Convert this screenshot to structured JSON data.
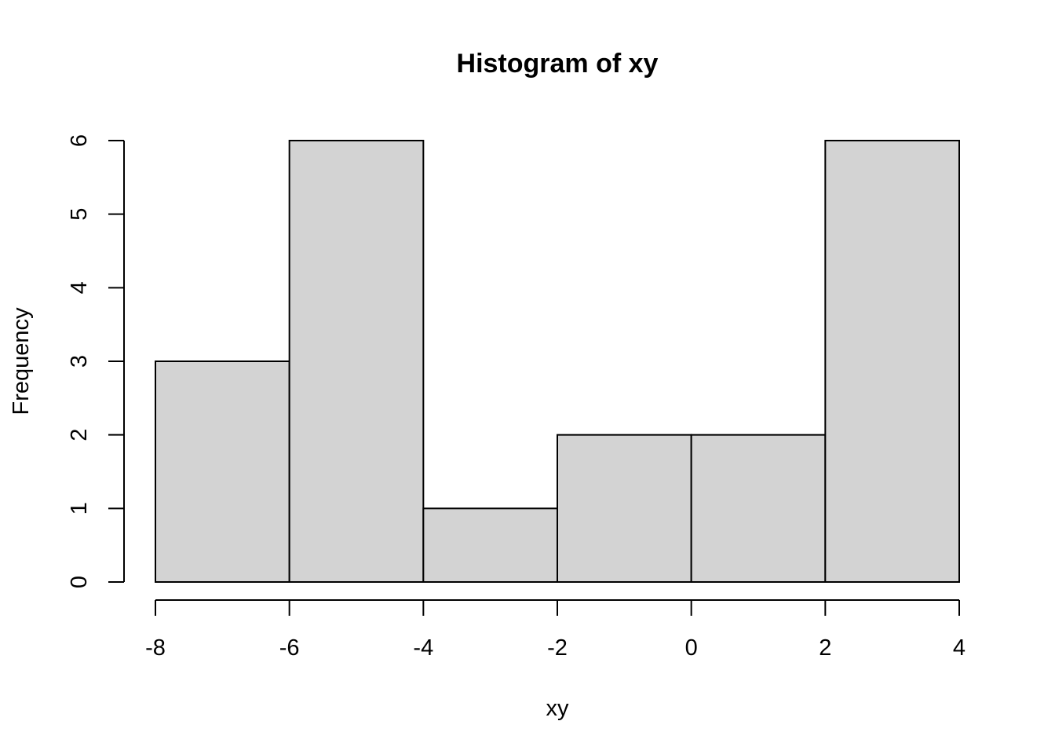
{
  "chart_data": {
    "type": "bar",
    "title": "Histogram of xy",
    "xlabel": "xy",
    "ylabel": "Frequency",
    "bins": [
      {
        "start": -8,
        "end": -6,
        "count": 3
      },
      {
        "start": -6,
        "end": -4,
        "count": 6
      },
      {
        "start": -4,
        "end": -2,
        "count": 1
      },
      {
        "start": -2,
        "end": 0,
        "count": 2
      },
      {
        "start": 0,
        "end": 2,
        "count": 2
      },
      {
        "start": 2,
        "end": 4,
        "count": 6
      }
    ],
    "x_ticks": [
      -8,
      -6,
      -4,
      -2,
      0,
      2,
      4
    ],
    "y_ticks": [
      0,
      1,
      2,
      3,
      4,
      5,
      6
    ],
    "xlim": [
      -8,
      4
    ],
    "ylim": [
      0,
      6
    ],
    "grid": false,
    "bar_color": "#d3d3d3",
    "edge_color": "#000000"
  }
}
